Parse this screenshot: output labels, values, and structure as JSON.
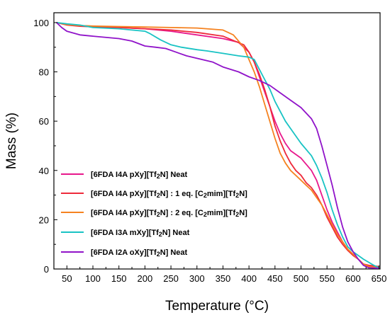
{
  "chart_data": {
    "type": "line",
    "xlabel": "Temperature (°C)",
    "ylabel": "Mass (%)",
    "xlim": [
      25,
      652
    ],
    "ylim": [
      0,
      104
    ],
    "xticks": [
      50,
      100,
      150,
      200,
      250,
      300,
      350,
      400,
      450,
      500,
      550,
      600,
      650
    ],
    "yticks": [
      0,
      20,
      40,
      60,
      80,
      100
    ],
    "grid": false,
    "legend_position": "bottom-left",
    "series": [
      {
        "name": "[6FDA I4A pXy][Tf2N] Neat",
        "legend_parts": [
          [
            "[6FDA I4A pXy][Tf",
            "n"
          ],
          [
            "2",
            "sub"
          ],
          [
            "N] Neat",
            "n"
          ]
        ],
        "color": "#e8188c",
        "points": [
          [
            30,
            100
          ],
          [
            50,
            99.2
          ],
          [
            75,
            98.8
          ],
          [
            100,
            98.5
          ],
          [
            150,
            98
          ],
          [
            200,
            97.5
          ],
          [
            250,
            96.5
          ],
          [
            300,
            95
          ],
          [
            350,
            93.5
          ],
          [
            380,
            92
          ],
          [
            400,
            88
          ],
          [
            410,
            84
          ],
          [
            420,
            78
          ],
          [
            430,
            72
          ],
          [
            440,
            66
          ],
          [
            450,
            60
          ],
          [
            460,
            55
          ],
          [
            470,
            51
          ],
          [
            480,
            48
          ],
          [
            500,
            45
          ],
          [
            520,
            40
          ],
          [
            530,
            36
          ],
          [
            540,
            30
          ],
          [
            550,
            24
          ],
          [
            560,
            19
          ],
          [
            570,
            15
          ],
          [
            580,
            11
          ],
          [
            590,
            8
          ],
          [
            600,
            6
          ],
          [
            610,
            4
          ],
          [
            620,
            2
          ],
          [
            630,
            1
          ],
          [
            650,
            0.5
          ]
        ]
      },
      {
        "name": "[6FDA I4A pXy][Tf2N] : 1 eq. [C2mim][Tf2N]",
        "legend_parts": [
          [
            "[6FDA I4A pXy][Tf",
            "n"
          ],
          [
            "2",
            "sub"
          ],
          [
            "N] : 1 eq. [C",
            "n"
          ],
          [
            "2",
            "sub"
          ],
          [
            "mim][Tf",
            "n"
          ],
          [
            "2",
            "sub"
          ],
          [
            "N]",
            "n"
          ]
        ],
        "color": "#ee2a3b",
        "points": [
          [
            30,
            100
          ],
          [
            50,
            99
          ],
          [
            75,
            98.5
          ],
          [
            100,
            98.3
          ],
          [
            150,
            98
          ],
          [
            200,
            97.5
          ],
          [
            250,
            97
          ],
          [
            300,
            96
          ],
          [
            350,
            94.5
          ],
          [
            390,
            91
          ],
          [
            400,
            88
          ],
          [
            410,
            84
          ],
          [
            420,
            79
          ],
          [
            430,
            73
          ],
          [
            440,
            66
          ],
          [
            450,
            58
          ],
          [
            460,
            52
          ],
          [
            470,
            47
          ],
          [
            480,
            43
          ],
          [
            490,
            40
          ],
          [
            500,
            38
          ],
          [
            510,
            35
          ],
          [
            520,
            33
          ],
          [
            530,
            30
          ],
          [
            540,
            26
          ],
          [
            550,
            21
          ],
          [
            560,
            17
          ],
          [
            570,
            13
          ],
          [
            580,
            10
          ],
          [
            590,
            7.5
          ],
          [
            600,
            5.5
          ],
          [
            610,
            4
          ],
          [
            620,
            2
          ],
          [
            630,
            1.5
          ],
          [
            650,
            1
          ]
        ]
      },
      {
        "name": "[6FDA I4A pXy][Tf2N] : 2 eq. [C2mim][Tf2N]",
        "legend_parts": [
          [
            "[6FDA I4A pXy][Tf",
            "n"
          ],
          [
            "2",
            "sub"
          ],
          [
            "N] : 2 eq. [C",
            "n"
          ],
          [
            "2",
            "sub"
          ],
          [
            "mim][Tf",
            "n"
          ],
          [
            "2",
            "sub"
          ],
          [
            "N]",
            "n"
          ]
        ],
        "color": "#f58220",
        "points": [
          [
            30,
            100
          ],
          [
            50,
            99.2
          ],
          [
            75,
            98.8
          ],
          [
            100,
            98.6
          ],
          [
            150,
            98.4
          ],
          [
            200,
            98.2
          ],
          [
            250,
            98
          ],
          [
            300,
            97.8
          ],
          [
            350,
            97
          ],
          [
            370,
            95
          ],
          [
            390,
            90
          ],
          [
            400,
            85
          ],
          [
            410,
            80
          ],
          [
            420,
            74
          ],
          [
            430,
            67
          ],
          [
            440,
            60
          ],
          [
            450,
            53
          ],
          [
            460,
            47
          ],
          [
            470,
            43
          ],
          [
            480,
            40
          ],
          [
            490,
            38
          ],
          [
            500,
            36
          ],
          [
            510,
            34
          ],
          [
            520,
            32
          ],
          [
            530,
            29
          ],
          [
            540,
            26
          ],
          [
            550,
            22
          ],
          [
            560,
            18
          ],
          [
            570,
            14
          ],
          [
            580,
            11
          ],
          [
            590,
            8
          ],
          [
            600,
            6
          ],
          [
            610,
            4
          ],
          [
            620,
            2
          ],
          [
            630,
            1
          ],
          [
            650,
            0.5
          ]
        ]
      },
      {
        "name": "[6FDA I3A mXy][Tf2N] Neat",
        "legend_parts": [
          [
            "[6FDA I3A mXy][Tf",
            "n"
          ],
          [
            "2",
            "sub"
          ],
          [
            "N] Neat",
            "n"
          ]
        ],
        "color": "#19c3c4",
        "points": [
          [
            30,
            100
          ],
          [
            50,
            99.5
          ],
          [
            75,
            99
          ],
          [
            100,
            98
          ],
          [
            150,
            97.5
          ],
          [
            200,
            96.5
          ],
          [
            210,
            95.5
          ],
          [
            230,
            93
          ],
          [
            250,
            91
          ],
          [
            270,
            90
          ],
          [
            300,
            89
          ],
          [
            320,
            88.5
          ],
          [
            350,
            87.5
          ],
          [
            380,
            86.5
          ],
          [
            400,
            86
          ],
          [
            410,
            85
          ],
          [
            420,
            81
          ],
          [
            430,
            77
          ],
          [
            440,
            73
          ],
          [
            450,
            68
          ],
          [
            460,
            64
          ],
          [
            470,
            60
          ],
          [
            480,
            57
          ],
          [
            490,
            54
          ],
          [
            500,
            51
          ],
          [
            520,
            46
          ],
          [
            530,
            42
          ],
          [
            540,
            37
          ],
          [
            550,
            31
          ],
          [
            560,
            24
          ],
          [
            570,
            18
          ],
          [
            580,
            13
          ],
          [
            590,
            9
          ],
          [
            600,
            7
          ],
          [
            620,
            4
          ],
          [
            640,
            1.5
          ],
          [
            650,
            0.5
          ]
        ]
      },
      {
        "name": "[6FDA I2A oXy][Tf2N] Neat",
        "legend_parts": [
          [
            "[6FDA I2A oXy][Tf",
            "n"
          ],
          [
            "2",
            "sub"
          ],
          [
            "N] Neat",
            "n"
          ]
        ],
        "color": "#9013c9",
        "points": [
          [
            30,
            100
          ],
          [
            40,
            98
          ],
          [
            50,
            96.5
          ],
          [
            75,
            95
          ],
          [
            100,
            94.5
          ],
          [
            150,
            93.5
          ],
          [
            175,
            92.5
          ],
          [
            200,
            90.5
          ],
          [
            220,
            90
          ],
          [
            240,
            89.5
          ],
          [
            260,
            88
          ],
          [
            280,
            86.5
          ],
          [
            300,
            85.5
          ],
          [
            330,
            84
          ],
          [
            350,
            82
          ],
          [
            380,
            80
          ],
          [
            400,
            78
          ],
          [
            420,
            76.5
          ],
          [
            440,
            74.5
          ],
          [
            460,
            71.5
          ],
          [
            480,
            68.5
          ],
          [
            500,
            65.5
          ],
          [
            520,
            61
          ],
          [
            530,
            57
          ],
          [
            540,
            50
          ],
          [
            550,
            42
          ],
          [
            560,
            34
          ],
          [
            570,
            25
          ],
          [
            580,
            17
          ],
          [
            590,
            11
          ],
          [
            600,
            7
          ],
          [
            610,
            4
          ],
          [
            620,
            1.5
          ],
          [
            630,
            0.5
          ],
          [
            650,
            0.3
          ]
        ]
      }
    ]
  }
}
